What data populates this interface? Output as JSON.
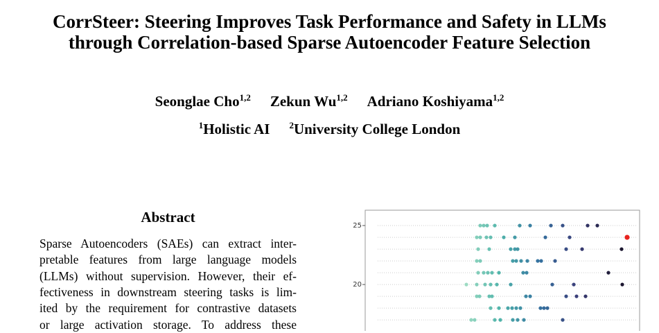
{
  "header": {
    "title_lines": [
      "CorrSteer: Steering Improves Task Performance and Safety in LLMs",
      "through Correlation-based Sparse Autoencoder Feature Selection"
    ],
    "authors": [
      {
        "name": "Seonglae Cho",
        "sup": "1,2"
      },
      {
        "name": "Zekun Wu",
        "sup": "1,2"
      },
      {
        "name": "Adriano Koshiyama",
        "sup": "1,2"
      }
    ],
    "affiliations": [
      {
        "sup": "1",
        "name": "Holistic AI"
      },
      {
        "sup": "2",
        "name": "University College London"
      }
    ]
  },
  "abstract": {
    "heading": "Abstract",
    "lines": [
      "Sparse Autoencoders (SAEs) can extract inter-",
      "pretable features from large language models",
      "(LLMs) without supervision. However, their ef-",
      "fectiveness in downstream steering tasks is lim-",
      "ited by the requirement for contrastive datasets",
      "or large activation storage.  To address these"
    ]
  },
  "chart_data": {
    "type": "scatter",
    "ylim": [
      16,
      26.3
    ],
    "yticks": [
      20,
      25
    ],
    "xlim": [
      0,
      396
    ],
    "colormap": [
      "#a6e0c6",
      "#4fb3aa",
      "#3573a1",
      "#3b3f7a",
      "#1c1730"
    ],
    "highlight": {
      "row": 1,
      "index": 8,
      "color": "#e8231f"
    },
    "rows": [
      {
        "y": 25,
        "x": [
          166,
          171,
          176,
          187,
          223,
          238,
          268,
          285,
          321,
          335
        ]
      },
      {
        "y": 24,
        "x": [
          161,
          166,
          175,
          181,
          200,
          216,
          260,
          295,
          378
        ]
      },
      {
        "y": 23,
        "x": [
          163,
          179,
          210,
          216,
          220,
          290,
          313,
          370
        ]
      },
      {
        "y": 22,
        "x": [
          161,
          166,
          213,
          218,
          225,
          234,
          249,
          254,
          274
        ]
      },
      {
        "y": 21,
        "x": [
          163,
          171,
          177,
          183,
          193,
          228,
          233,
          351
        ]
      },
      {
        "y": 20,
        "x": [
          146,
          161,
          173,
          181,
          190,
          210,
          270,
          301,
          371
        ]
      },
      {
        "y": 19,
        "x": [
          161,
          165,
          179,
          183,
          232,
          238,
          290,
          305,
          318
        ]
      },
      {
        "y": 18,
        "x": [
          181,
          193,
          206,
          212,
          218,
          224,
          253,
          258,
          263
        ]
      },
      {
        "y": 17,
        "x": [
          153,
          158,
          187,
          195,
          213,
          220,
          229,
          285
        ]
      }
    ]
  }
}
